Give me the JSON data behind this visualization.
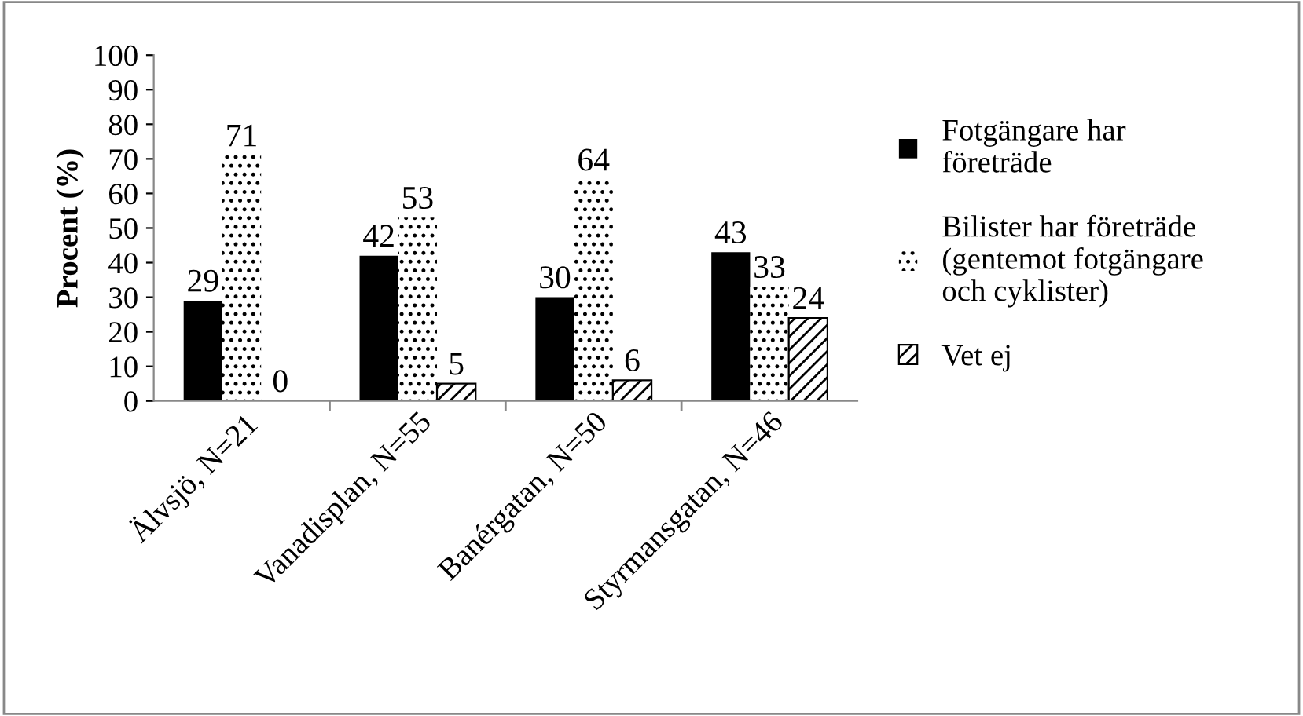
{
  "chart_data": {
    "type": "bar",
    "ylabel": "Procent (%)",
    "categories": [
      "Älvsjö, N=21",
      "Vanadisplan, N=55",
      "Banérgatan, N=50",
      "Styrmansgatan, N=46"
    ],
    "series": [
      {
        "name": "Fotgängare har\nföreträde",
        "color": "#000000",
        "values": [
          29,
          42,
          30,
          43
        ]
      },
      {
        "name": "Bilister har företräde\n(gentemot fotgängare\noch cyklister)",
        "color": "#ffffff",
        "values": [
          71,
          53,
          64,
          33
        ]
      },
      {
        "name": "Vet ej",
        "color": "#000000",
        "values": [
          0,
          5,
          6,
          24
        ]
      }
    ],
    "ylim": [
      0,
      100
    ],
    "yticks": [
      0,
      10,
      20,
      30,
      40,
      50,
      60,
      70,
      80,
      90,
      100
    ],
    "grid": false,
    "legend": "right",
    "data_labels": true
  }
}
